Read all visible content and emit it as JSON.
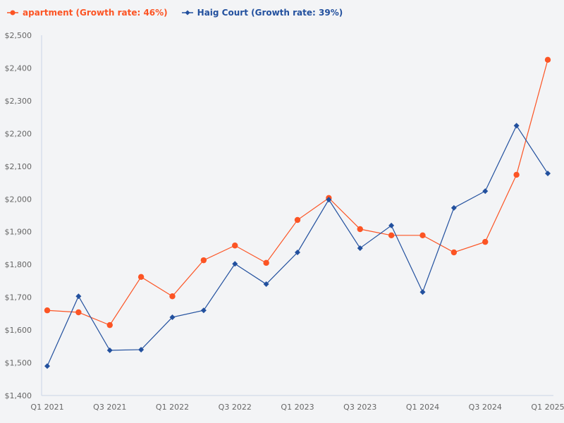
{
  "legend": [
    {
      "label": "apartment (Growth rate: 46%)",
      "color": "#fc5424",
      "marker": "circle"
    },
    {
      "label": "Haig Court (Growth rate: 39%)",
      "color": "#22509e",
      "marker": "diamond"
    }
  ],
  "axis": {
    "y_ticks": [
      "$2,500",
      "$2,400",
      "$2,300",
      "$2,200",
      "$2,100",
      "$2,000",
      "$1,900",
      "$1,800",
      "$1,700",
      "$1,600",
      "$1,500",
      "$1,400"
    ],
    "x_ticks": [
      "Q1 2021",
      "Q3 2021",
      "Q1 2022",
      "Q3 2022",
      "Q1 2023",
      "Q3 2023",
      "Q1 2024",
      "Q3 2024",
      "Q1 2025"
    ],
    "axis_color": "#c9d3e6"
  },
  "chart_data": {
    "type": "line",
    "title": "",
    "xlabel": "",
    "ylabel": "",
    "ylim": [
      1400,
      2500
    ],
    "grid": false,
    "legend_position": "top-left",
    "x": [
      "Q1 2021",
      "Q2 2021",
      "Q3 2021",
      "Q4 2021",
      "Q1 2022",
      "Q2 2022",
      "Q3 2022",
      "Q4 2022",
      "Q1 2023",
      "Q2 2023",
      "Q3 2023",
      "Q4 2023",
      "Q1 2024",
      "Q2 2024",
      "Q3 2024",
      "Q4 2024",
      "Q1 2025"
    ],
    "series": [
      {
        "name": "apartment (Growth rate: 46%)",
        "color": "#fc5424",
        "marker": "circle",
        "values": [
          1660,
          1654,
          1615,
          1762,
          1703,
          1813,
          1858,
          1805,
          1936,
          2003,
          1908,
          1889,
          1889,
          1837,
          1869,
          2074,
          2425
        ]
      },
      {
        "name": "Haig Court (Growth rate: 39%)",
        "color": "#22509e",
        "marker": "diamond",
        "values": [
          1490,
          1703,
          1538,
          1540,
          1639,
          1660,
          1802,
          1740,
          1837,
          1998,
          1850,
          1919,
          1716,
          1973,
          2024,
          2224,
          2078
        ]
      }
    ]
  }
}
